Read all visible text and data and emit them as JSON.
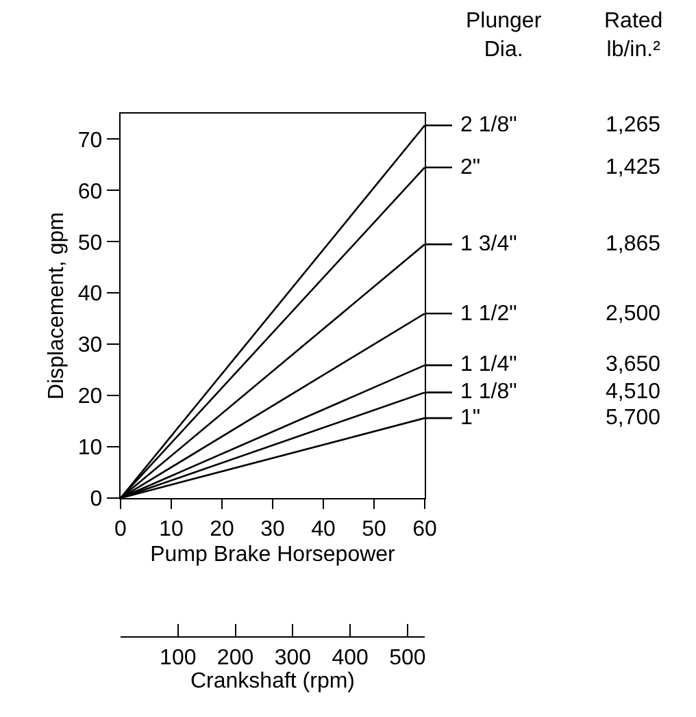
{
  "chart_data": {
    "type": "line",
    "xlabel": "Pump Brake Horsepower",
    "ylabel": "Displacement, gpm",
    "x2label": "Crankshaft (rpm)",
    "x": [
      0,
      60
    ],
    "series": [
      {
        "name": "2 1/8\"",
        "color": "#000000",
        "values": [
          0,
          72.7
        ]
      },
      {
        "name": "2\"",
        "color": "#000000",
        "values": [
          0,
          64.5
        ]
      },
      {
        "name": "1 3/4\"",
        "color": "#000000",
        "values": [
          0,
          49.5
        ]
      },
      {
        "name": "1 1/2\"",
        "color": "#000000",
        "values": [
          0,
          36.0
        ]
      },
      {
        "name": "1 1/4\"",
        "color": "#000000",
        "values": [
          0,
          25.9
        ]
      },
      {
        "name": "1 1/8\"",
        "color": "#000000",
        "values": [
          0,
          20.6
        ]
      },
      {
        "name": "1\"",
        "color": "#000000",
        "values": [
          0,
          15.6
        ]
      }
    ],
    "xlim": [
      0,
      60
    ],
    "xticks": [
      0,
      10,
      20,
      30,
      40,
      50,
      60
    ],
    "ylim": [
      0,
      75
    ],
    "yticks": [
      0,
      10,
      20,
      30,
      40,
      50,
      60,
      70
    ],
    "x2lim": [
      0,
      530
    ],
    "x2ticks": [
      {
        "value": 0,
        "label": null
      },
      100,
      200,
      300,
      400,
      500
    ],
    "annotations": [
      "Plunger\nDia.",
      "Rated\nlb/in.²",
      "1,265",
      "1,425",
      "1,865",
      "2,500",
      "3,650",
      "4,510",
      "5,700"
    ],
    "legend": "right",
    "marker": "none",
    "line_style": "solid"
  }
}
